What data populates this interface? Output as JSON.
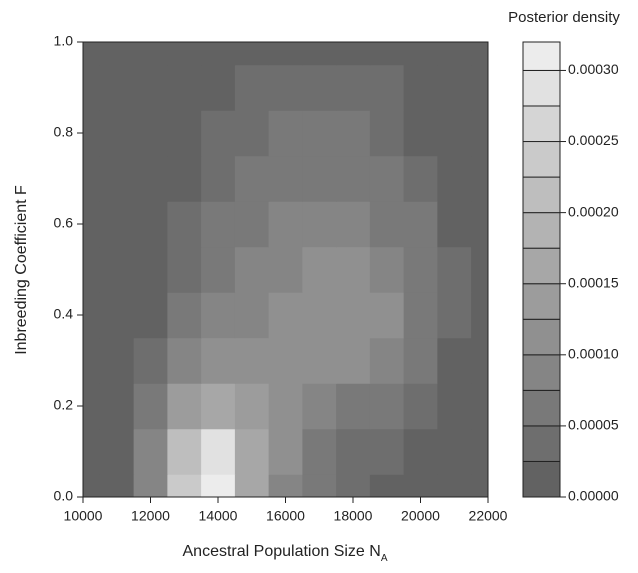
{
  "chart_data": {
    "type": "contour",
    "xlabel": "Ancestral Population Size N",
    "xlabel_sub": "A",
    "ylabel": "Inbreeding Coefficient F",
    "colorbar_title": "Posterior density",
    "x": [
      10000,
      11000,
      12000,
      13000,
      14000,
      15000,
      16000,
      17000,
      18000,
      19000,
      20000,
      21000,
      22000
    ],
    "y": [
      0.0,
      0.1,
      0.2,
      0.3,
      0.4,
      0.5,
      0.6,
      0.7,
      0.8,
      0.9,
      1.0
    ],
    "z": [
      [
        0,
        2e-05,
        8e-05,
        0.00024,
        0.00031,
        0.00015,
        8e-05,
        5e-05,
        3e-05,
        2e-05,
        1e-05,
        0,
        0
      ],
      [
        0,
        2e-05,
        8e-05,
        0.00022,
        0.00028,
        0.00016,
        0.0001,
        7e-05,
        4e-05,
        3e-05,
        2e-05,
        1e-05,
        0
      ],
      [
        0,
        1e-05,
        5e-05,
        0.00013,
        0.00016,
        0.00013,
        0.00011,
        9e-05,
        7e-05,
        5e-05,
        3e-05,
        2e-05,
        1e-05
      ],
      [
        0,
        1e-05,
        3e-05,
        8e-05,
        0.0001,
        0.0001,
        0.0001,
        0.0001,
        0.0001,
        8e-05,
        5e-05,
        2e-05,
        1e-05
      ],
      [
        0,
        0,
        2e-05,
        5e-05,
        8e-05,
        9e-05,
        0.0001,
        0.00011,
        0.00012,
        0.0001,
        6e-05,
        3e-05,
        1e-05
      ],
      [
        0,
        0,
        1e-05,
        4e-05,
        6e-05,
        8e-05,
        9e-05,
        0.0001,
        0.0001,
        9e-05,
        6e-05,
        3e-05,
        1e-05
      ],
      [
        0,
        0,
        1e-05,
        3e-05,
        5e-05,
        7e-05,
        8e-05,
        8e-05,
        8e-05,
        7e-05,
        5e-05,
        2e-05,
        1e-05
      ],
      [
        0,
        0,
        1e-05,
        2e-05,
        4e-05,
        5e-05,
        6e-05,
        6e-05,
        6e-05,
        5e-05,
        3e-05,
        2e-05,
        0
      ],
      [
        0,
        0,
        0,
        1e-05,
        3e-05,
        4e-05,
        5e-05,
        5e-05,
        5e-05,
        4e-05,
        2e-05,
        1e-05,
        0
      ],
      [
        0,
        0,
        0,
        1e-05,
        2e-05,
        3e-05,
        3e-05,
        3e-05,
        3e-05,
        3e-05,
        2e-05,
        1e-05,
        0
      ],
      [
        0,
        0,
        0,
        0,
        1e-05,
        2e-05,
        2e-05,
        2e-05,
        2e-05,
        2e-05,
        1e-05,
        0,
        0
      ]
    ],
    "levels": [
      0,
      2.5e-05,
      5e-05,
      7.5e-05,
      0.0001,
      0.000125,
      0.00015,
      0.000175,
      0.0002,
      0.000225,
      0.00025,
      0.000275,
      0.0003,
      0.00032
    ],
    "color_low": "#626262",
    "color_high": "#ececec",
    "xlim": [
      10000,
      22000
    ],
    "ylim": [
      0,
      1
    ],
    "clim": [
      0,
      0.00032
    ],
    "xticks": [
      10000,
      12000,
      14000,
      16000,
      18000,
      20000,
      22000
    ],
    "yticks": [
      {
        "value": 0,
        "label": "0.0"
      },
      {
        "value": 0.2,
        "label": "0.2"
      },
      {
        "value": 0.4,
        "label": "0.4"
      },
      {
        "value": 0.6,
        "label": "0.6"
      },
      {
        "value": 0.8,
        "label": "0.8"
      },
      {
        "value": 1,
        "label": "1.0"
      }
    ],
    "cticks": [
      {
        "value": 0,
        "label": "0.00000"
      },
      {
        "value": 5e-05,
        "label": "0.00005"
      },
      {
        "value": 0.0001,
        "label": "0.00010"
      },
      {
        "value": 0.00015,
        "label": "0.00015"
      },
      {
        "value": 0.0002,
        "label": "0.00020"
      },
      {
        "value": 0.00025,
        "label": "0.00025"
      },
      {
        "value": 0.0003,
        "label": "0.00030"
      }
    ]
  }
}
